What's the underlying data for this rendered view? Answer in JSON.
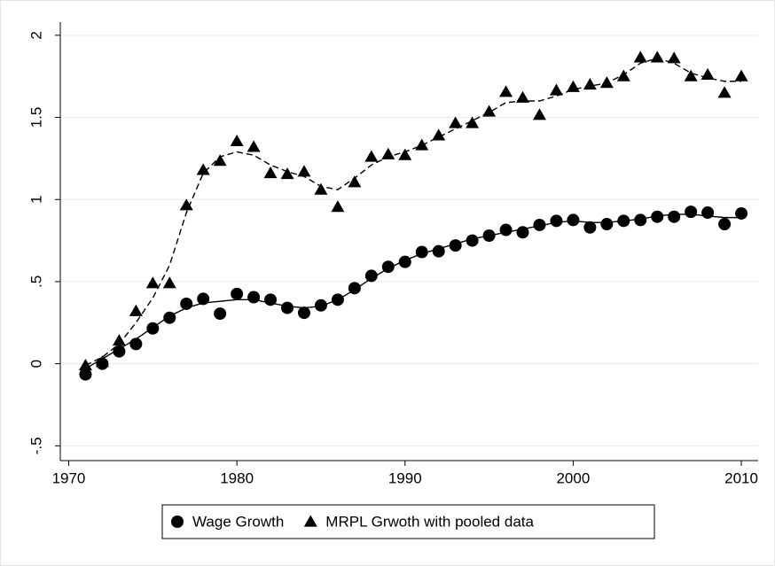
{
  "chart_data": {
    "type": "scatter",
    "x": [
      1971,
      1972,
      1973,
      1974,
      1975,
      1976,
      1977,
      1978,
      1979,
      1980,
      1981,
      1982,
      1983,
      1984,
      1985,
      1986,
      1987,
      1988,
      1989,
      1990,
      1991,
      1992,
      1993,
      1994,
      1995,
      1996,
      1997,
      1998,
      1999,
      2000,
      2001,
      2002,
      2003,
      2004,
      2005,
      2006,
      2007,
      2008,
      2009,
      2010
    ],
    "series": [
      {
        "name": "Wage Growth",
        "color": "#000000",
        "marker": "circle",
        "fit_line": "solid",
        "values": [
          -0.065,
          0,
          0.075,
          0.12,
          0.215,
          0.28,
          0.365,
          0.395,
          0.305,
          0.425,
          0.405,
          0.39,
          0.34,
          0.31,
          0.355,
          0.39,
          0.46,
          0.535,
          0.59,
          0.62,
          0.68,
          0.685,
          0.72,
          0.75,
          0.78,
          0.815,
          0.8,
          0.845,
          0.87,
          0.875,
          0.83,
          0.85,
          0.87,
          0.875,
          0.895,
          0.895,
          0.925,
          0.92,
          0.85,
          0.915
        ],
        "fit": [
          -0.03,
          0.03,
          0.09,
          0.15,
          0.22,
          0.29,
          0.34,
          0.37,
          0.38,
          0.39,
          0.39,
          0.37,
          0.35,
          0.34,
          0.35,
          0.39,
          0.45,
          0.52,
          0.58,
          0.63,
          0.67,
          0.7,
          0.73,
          0.76,
          0.78,
          0.8,
          0.82,
          0.84,
          0.86,
          0.87,
          0.86,
          0.86,
          0.87,
          0.88,
          0.9,
          0.91,
          0.91,
          0.9,
          0.89,
          0.89
        ]
      },
      {
        "name": "MRPL Grwoth with pooled data",
        "color": "#000000",
        "marker": "triangle",
        "fit_line": "dashed",
        "values": [
          -0.01,
          0.01,
          0.14,
          0.32,
          0.49,
          0.49,
          0.965,
          1.18,
          1.235,
          1.355,
          1.32,
          1.16,
          1.155,
          1.17,
          1.06,
          0.955,
          1.105,
          1.26,
          1.275,
          1.27,
          1.33,
          1.39,
          1.465,
          1.465,
          1.535,
          1.655,
          1.62,
          1.515,
          1.665,
          1.685,
          1.7,
          1.71,
          1.75,
          1.865,
          1.865,
          1.86,
          1.75,
          1.76,
          1.65,
          1.75
        ],
        "fit": [
          -0.01,
          0.04,
          0.12,
          0.25,
          0.4,
          0.6,
          0.92,
          1.16,
          1.26,
          1.29,
          1.27,
          1.21,
          1.17,
          1.14,
          1.08,
          1.06,
          1.13,
          1.21,
          1.26,
          1.29,
          1.33,
          1.38,
          1.43,
          1.48,
          1.53,
          1.59,
          1.6,
          1.6,
          1.63,
          1.67,
          1.69,
          1.71,
          1.76,
          1.83,
          1.86,
          1.83,
          1.77,
          1.74,
          1.72,
          1.72
        ]
      }
    ],
    "xlim": [
      1969.5,
      2011
    ],
    "xticks": [
      1970,
      1980,
      1990,
      2000,
      2010
    ],
    "ylim": [
      -0.59,
      2.08
    ],
    "yticks": [
      {
        "value": -0.5,
        "label": "-.5"
      },
      0,
      {
        "value": 0.5,
        "label": ".5"
      },
      1,
      1.5,
      2
    ],
    "grid": true,
    "legend": "bottom"
  }
}
